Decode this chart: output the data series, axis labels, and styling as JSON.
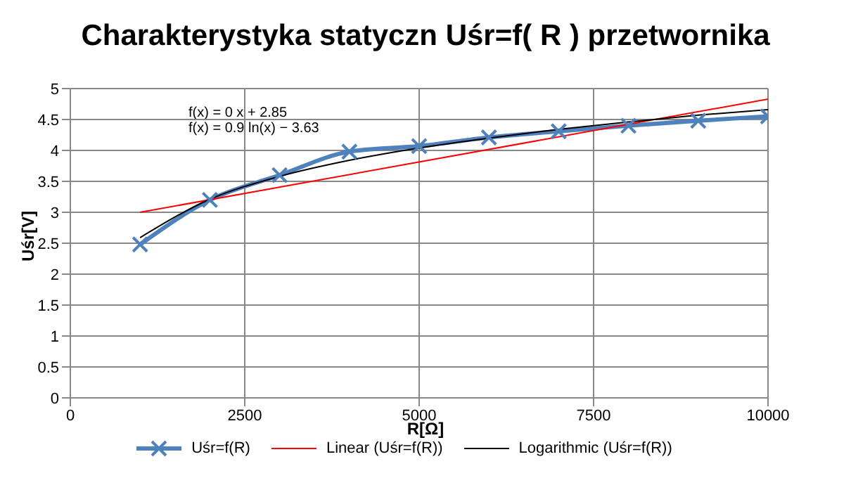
{
  "chart_data": {
    "type": "line",
    "title": "Charakterystyka statyczn Uśr=f( R ) przetwornika",
    "xlabel": "R[Ω]",
    "ylabel": "Uśr[V]",
    "x": [
      1000,
      2000,
      3000,
      4000,
      5000,
      6000,
      7000,
      8000,
      9000,
      10000
    ],
    "series": [
      {
        "name": "Uśr=f(R)",
        "color": "#4f81bd",
        "marker": "cross",
        "values": [
          2.48,
          3.2,
          3.6,
          3.98,
          4.07,
          4.21,
          4.31,
          4.4,
          4.48,
          4.55
        ]
      },
      {
        "name": "Linear (Uśr=f(R))",
        "color": "#ff0000",
        "marker": "none",
        "x": [
          1000,
          10000
        ],
        "values": [
          3.0,
          4.83
        ]
      },
      {
        "name": "Logarithmic (Uśr=f(R))",
        "color": "#000000",
        "marker": "none",
        "values": [
          2.59,
          3.21,
          3.58,
          3.84,
          4.04,
          4.2,
          4.34,
          4.46,
          4.57,
          4.66
        ]
      }
    ],
    "xlim": [
      0,
      10000
    ],
    "xticks": [
      0,
      2500,
      5000,
      7500,
      10000
    ],
    "ylim": [
      0,
      5
    ],
    "yticks": [
      0,
      0.5,
      1,
      1.5,
      2,
      2.5,
      3,
      3.5,
      4,
      4.5,
      5
    ],
    "grid": true,
    "legend": "bottom",
    "annotations": [
      "f(x) = 0 x + 2.85",
      "f(x) = 0.9 ln(x) − 3.63"
    ]
  }
}
